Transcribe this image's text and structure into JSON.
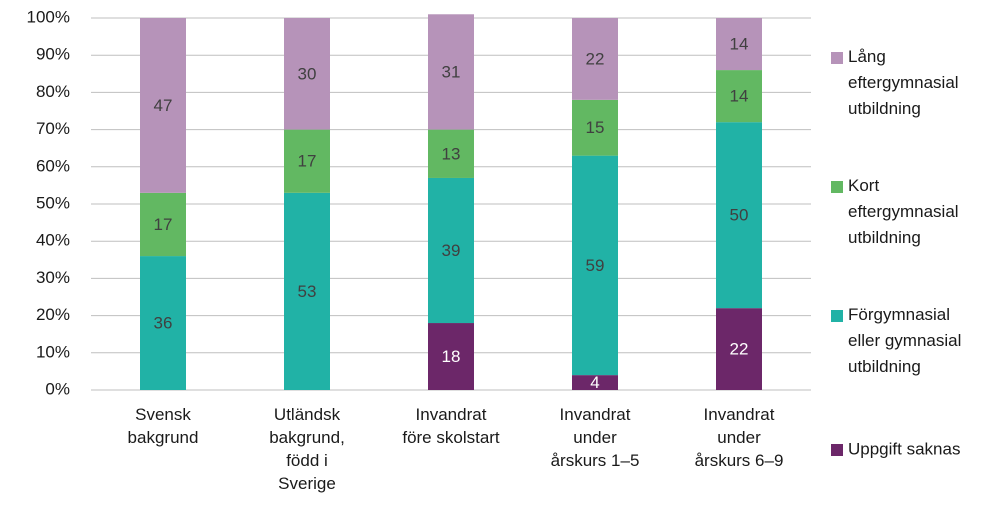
{
  "chart_data": {
    "type": "stacked_bar",
    "categories": [
      "Svensk\nbakgrund",
      "Utländsk\nbakgrund,\nfödd i\nSverige",
      "Invandrat\nföre skolstart",
      "Invandrat\nunder\nårskurs 1–5",
      "Invandrat\nunder\nårskurs 6–9"
    ],
    "series": [
      {
        "name": "Uppgift saknas",
        "color": "#6c2769",
        "values": [
          null,
          null,
          18,
          4,
          22
        ]
      },
      {
        "name": "Förgymnasial\neller gymnasial\nutbildning",
        "color": "#21b2a6",
        "values": [
          36,
          53,
          39,
          59,
          50
        ]
      },
      {
        "name": "Kort\neftergymnasial\nutbildning",
        "color": "#62b862",
        "values": [
          17,
          17,
          13,
          15,
          14
        ]
      },
      {
        "name": "Lång\neftergymnasial\nutbildning",
        "color": "#b693b9",
        "values": [
          47,
          30,
          31,
          22,
          14
        ]
      }
    ],
    "ylim": [
      0,
      100
    ],
    "yticks": [
      {
        "value": 0,
        "label": "0%"
      },
      {
        "value": 10,
        "label": "10%"
      },
      {
        "value": 20,
        "label": "20%"
      },
      {
        "value": 30,
        "label": "30%"
      },
      {
        "value": 40,
        "label": "40%"
      },
      {
        "value": 50,
        "label": "50%"
      },
      {
        "value": 60,
        "label": "60%"
      },
      {
        "value": 70,
        "label": "70%"
      },
      {
        "value": 80,
        "label": "80%"
      },
      {
        "value": 90,
        "label": "90%"
      },
      {
        "value": 100,
        "label": "100%"
      }
    ],
    "grid": true,
    "legend": "right"
  }
}
